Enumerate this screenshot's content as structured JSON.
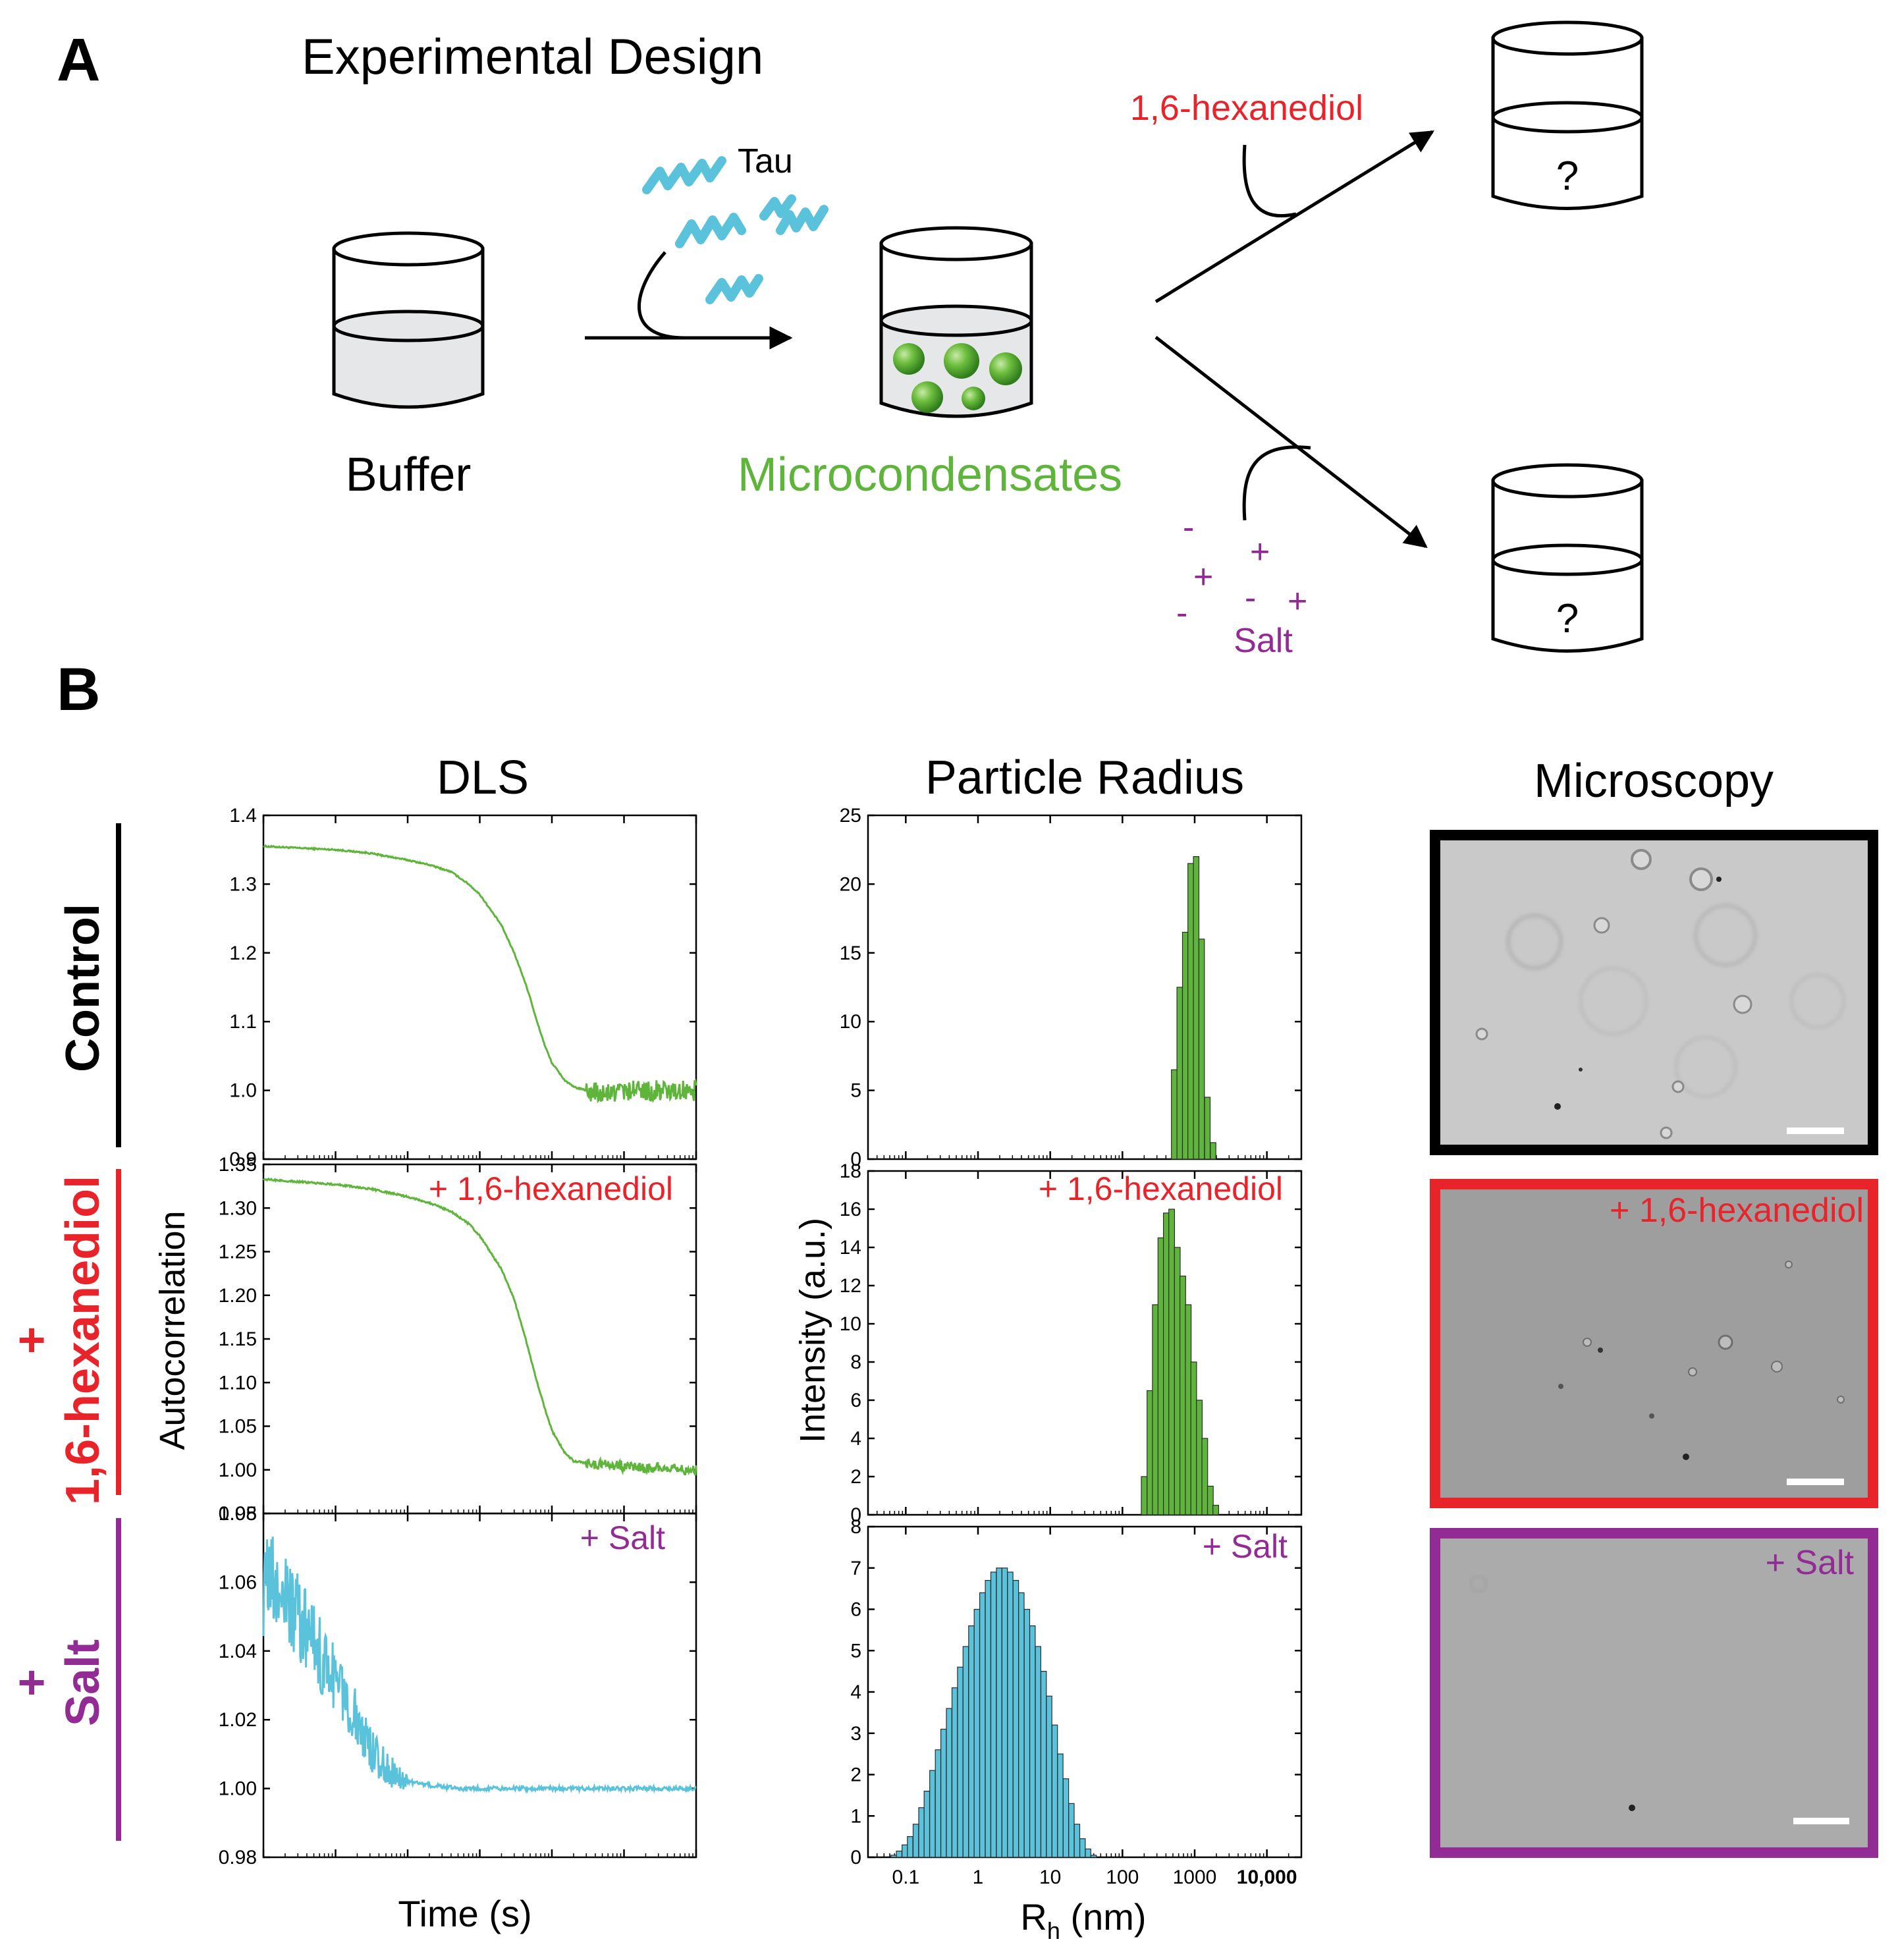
{
  "panel_a": {
    "letter": "A",
    "title": "Experimental Design",
    "buffer_label": "Buffer",
    "tau_label": "Tau",
    "microcondensates_label": "Microcondensates",
    "hexanediol_label": "1,6-hexanediol",
    "salt_label": "Salt",
    "question_top": "?",
    "question_bottom": "?",
    "ion_signs": [
      "-",
      "+",
      "+",
      "-",
      "+",
      "-"
    ],
    "colors": {
      "tau": "#5bc2dc",
      "condensate": "#5fb53b",
      "hexanediol": "#e8232a",
      "salt": "#922b94",
      "liquid": "#e6e7e8"
    }
  },
  "panel_b": {
    "letter": "B",
    "dls_title": "DLS",
    "radius_title": "Particle Radius",
    "microscopy_title": "Microscopy",
    "row_labels": {
      "control": "Control",
      "hex_plus": "+",
      "hex_name": "1,6-hexanediol",
      "salt_plus": "+",
      "salt_name": "Salt"
    },
    "dls_ylabel": "Autocorrelation",
    "dls_xlabel": "Time (s)",
    "radius_ylabel": "Intensity (a.u.)",
    "radius_xlabel_main": "R",
    "radius_xlabel_sub": "h",
    "radius_xlabel_unit": " (nm)",
    "annotations": {
      "hex": "+ 1,6-hexanediol",
      "salt": "+ Salt",
      "micro_hex": "+ 1,6-hexanediol",
      "micro_salt": "+ Salt"
    },
    "colors": {
      "control": "#000000",
      "hex": "#e8232a",
      "salt": "#922b94",
      "green": "#5fb53b",
      "cyan": "#5bc2dc"
    }
  },
  "chart_data": [
    {
      "type": "line",
      "panel": "DLS control",
      "xscale": "log",
      "xlim": [
        0.001,
        1000
      ],
      "ylim": [
        0.9,
        1.4
      ],
      "yticks": [
        "0.9",
        "1.0",
        "1.1",
        "1.2",
        "1.3",
        "1.4"
      ],
      "xticks": [
        "0.001",
        "0.01",
        "0.1",
        "1",
        "10",
        "100",
        "1000"
      ],
      "x": [
        0.001,
        0.01,
        0.03,
        0.1,
        0.2,
        0.4,
        0.7,
        1,
        2,
        3,
        4,
        5,
        6,
        8,
        10,
        15,
        20,
        30,
        50,
        100,
        200,
        400,
        700,
        1000
      ],
      "y": [
        1.355,
        1.35,
        1.345,
        1.335,
        1.328,
        1.318,
        1.3,
        1.285,
        1.24,
        1.2,
        1.165,
        1.135,
        1.105,
        1.065,
        1.04,
        1.015,
        1.005,
        1.0,
        0.995,
        1.0,
        1.0,
        1.0,
        1.0,
        1.0
      ],
      "noise_after": 50
    },
    {
      "type": "line",
      "panel": "DLS + 1,6-hexanediol",
      "xscale": "log",
      "xlim": [
        0.001,
        1000
      ],
      "ylim": [
        0.95,
        1.35
      ],
      "yticks": [
        "0.95",
        "1.00",
        "1.05",
        "1.10",
        "1.15",
        "1.20",
        "1.25",
        "1.30",
        "1.35"
      ],
      "x": [
        0.001,
        0.01,
        0.03,
        0.1,
        0.2,
        0.4,
        0.7,
        1,
        2,
        3,
        4,
        5,
        6,
        8,
        10,
        15,
        20,
        30,
        50,
        100,
        200,
        400,
        700,
        1000
      ],
      "y": [
        1.333,
        1.327,
        1.322,
        1.313,
        1.306,
        1.296,
        1.282,
        1.268,
        1.23,
        1.195,
        1.16,
        1.13,
        1.105,
        1.07,
        1.045,
        1.02,
        1.01,
        1.008,
        1.006,
        1.004,
        1.002,
        1.001,
        1.0,
        1.0
      ]
    },
    {
      "type": "line",
      "panel": "DLS + Salt",
      "xscale": "log",
      "xlim": [
        0.001,
        1000
      ],
      "ylim": [
        0.98,
        1.08
      ],
      "yticks": [
        "0.98",
        "1.00",
        "1.02",
        "1.04",
        "1.06",
        "1.08"
      ],
      "x": [
        0.001,
        0.0015,
        0.002,
        0.003,
        0.005,
        0.008,
        0.01,
        0.015,
        0.02,
        0.03,
        0.05,
        0.08,
        0.1,
        0.2,
        0.5,
        1,
        10,
        100,
        1000
      ],
      "y": [
        1.06,
        1.058,
        1.055,
        1.05,
        1.042,
        1.035,
        1.032,
        1.025,
        1.02,
        1.012,
        1.006,
        1.003,
        1.002,
        1.001,
        1.0,
        1.0,
        1.0,
        1.0,
        1.0
      ]
    },
    {
      "type": "bar",
      "panel": "Particle Radius control",
      "xscale": "log",
      "xlim": [
        0.03,
        30000
      ],
      "ylim": [
        0,
        25
      ],
      "yticks": [
        "0",
        "5",
        "10",
        "15",
        "20",
        "25"
      ],
      "x": [
        520,
        620,
        740,
        880,
        1050,
        1250,
        1500,
        1800
      ],
      "values": [
        6.5,
        12.5,
        16.5,
        21.5,
        22.0,
        16.0,
        4.5,
        1.2
      ]
    },
    {
      "type": "bar",
      "panel": "Particle Radius + 1,6-hexanediol",
      "xscale": "log",
      "xlim": [
        0.03,
        30000
      ],
      "ylim": [
        0,
        18
      ],
      "yticks": [
        "0",
        "2",
        "4",
        "6",
        "8",
        "10",
        "12",
        "14",
        "16",
        "18"
      ],
      "x": [
        200,
        240,
        285,
        340,
        405,
        480,
        575,
        685,
        815,
        970,
        1160,
        1380,
        1650,
        1960
      ],
      "values": [
        2.0,
        6.5,
        11.0,
        14.5,
        15.8,
        16.0,
        14.0,
        12.5,
        11.0,
        8.0,
        6.0,
        4.0,
        1.5,
        0.5
      ]
    },
    {
      "type": "bar",
      "panel": "Particle Radius + Salt",
      "xscale": "log",
      "xlim": [
        0.03,
        30000
      ],
      "ylim": [
        0,
        8
      ],
      "yticks": [
        "0",
        "1",
        "2",
        "3",
        "4",
        "5",
        "6",
        "7",
        "8"
      ],
      "xticks": [
        "0.1",
        "1",
        "10",
        "100",
        "1000",
        "10,000"
      ],
      "x": [
        0.068,
        0.081,
        0.097,
        0.115,
        0.138,
        0.165,
        0.196,
        0.234,
        0.28,
        0.334,
        0.398,
        0.476,
        0.568,
        0.678,
        0.81,
        0.966,
        1.153,
        1.377,
        1.644,
        1.963,
        2.343,
        2.798,
        3.34,
        3.988,
        4.762,
        5.685,
        6.788,
        8.104,
        9.676,
        11.55,
        13.79,
        16.47,
        19.66,
        23.48,
        28.03,
        33.47,
        39.96
      ],
      "values": [
        0.05,
        0.15,
        0.3,
        0.5,
        0.8,
        1.2,
        1.6,
        2.1,
        2.6,
        3.1,
        3.6,
        4.1,
        4.6,
        5.1,
        5.6,
        6.0,
        6.4,
        6.7,
        6.9,
        7.0,
        7.0,
        6.9,
        6.7,
        6.4,
        6.0,
        5.6,
        5.1,
        4.5,
        3.9,
        3.2,
        2.5,
        1.9,
        1.3,
        0.8,
        0.45,
        0.2,
        0.05
      ]
    }
  ]
}
